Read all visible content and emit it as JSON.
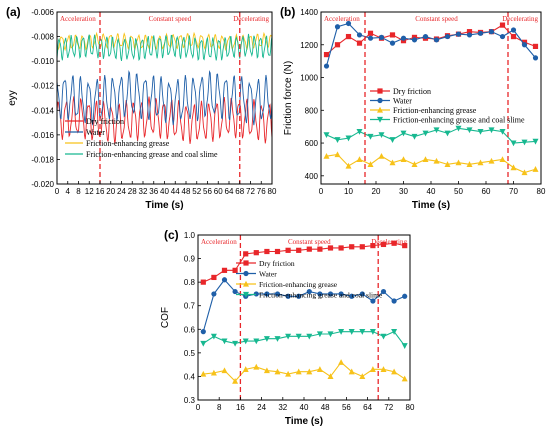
{
  "colors": {
    "dry": "#e8262a",
    "water": "#1f5fa8",
    "grease": "#f7c21a",
    "slime": "#17b890",
    "phase_line": "#e8262a",
    "axis": "#000000"
  },
  "chart_data": [
    {
      "panel": "(a)",
      "type": "line",
      "xlabel": "Time (s)",
      "ylabel": "eyy",
      "xlim": [
        0,
        80
      ],
      "ylim": [
        -0.02,
        -0.006
      ],
      "xticks": [
        "0",
        "4",
        "8",
        "12",
        "16",
        "20",
        "24",
        "28",
        "32",
        "36",
        "40",
        "44",
        "48",
        "52",
        "56",
        "60",
        "64",
        "68",
        "72",
        "76",
        "80"
      ],
      "yticks": [
        "-0.020",
        "-0.018",
        "-0.016",
        "-0.014",
        "-0.012",
        "-0.010",
        "-0.008",
        "-0.006"
      ],
      "phases": [
        {
          "label": "Acceleration",
          "x_start": 0,
          "x_end": 16
        },
        {
          "label": "Constant speed",
          "x_start": 16,
          "x_end": 68
        },
        {
          "label": "Decelerating",
          "x_start": 68,
          "x_end": 80
        }
      ],
      "phase_boundaries": [
        16,
        68
      ],
      "legend_position": "bottom-left",
      "series": [
        {
          "name": "Dry friction",
          "color_key": "dry",
          "center": -0.0148,
          "amplitude": 0.0014,
          "period": 2.8
        },
        {
          "name": "Water",
          "color_key": "water",
          "center": -0.013,
          "amplitude": 0.0016,
          "period": 3.0
        },
        {
          "name": "Friction-enhancing grease",
          "color_key": "grease",
          "center": -0.0084,
          "amplitude": 0.0005,
          "period": 2.6
        },
        {
          "name": "Friction-enhancing grease and coal slime",
          "color_key": "slime",
          "center": -0.0089,
          "amplitude": 0.0008,
          "period": 2.2
        }
      ]
    },
    {
      "panel": "(b)",
      "type": "line",
      "xlabel": "Time (s)",
      "ylabel": "Friction force (N)",
      "xlim": [
        0,
        80
      ],
      "ylim": [
        350,
        1400
      ],
      "xticks": [
        "0",
        "10",
        "20",
        "30",
        "40",
        "50",
        "60",
        "70",
        "80"
      ],
      "yticks": [
        "400",
        "600",
        "800",
        "1000",
        "1200",
        "1400"
      ],
      "phases": [
        {
          "label": "Acceleration",
          "x_start": 0,
          "x_end": 16
        },
        {
          "label": "Constant speed",
          "x_start": 16,
          "x_end": 68
        },
        {
          "label": "Decelerating",
          "x_start": 68,
          "x_end": 80
        }
      ],
      "phase_boundaries": [
        16,
        68
      ],
      "legend_position": "middle",
      "x": [
        2,
        6,
        10,
        14,
        18,
        22,
        26,
        30,
        34,
        38,
        42,
        46,
        50,
        54,
        58,
        62,
        66,
        70,
        74,
        78
      ],
      "series": [
        {
          "name": "Dry friction",
          "color_key": "dry",
          "marker": "square",
          "values": [
            1140,
            1200,
            1250,
            1210,
            1270,
            1240,
            1260,
            1225,
            1245,
            1240,
            1235,
            1255,
            1265,
            1280,
            1275,
            1280,
            1320,
            1250,
            1215,
            1190
          ]
        },
        {
          "name": "Water",
          "color_key": "water",
          "marker": "circle",
          "values": [
            1070,
            1310,
            1330,
            1260,
            1240,
            1245,
            1210,
            1240,
            1230,
            1250,
            1230,
            1250,
            1265,
            1260,
            1270,
            1280,
            1250,
            1290,
            1200,
            1120
          ]
        },
        {
          "name": "Friction-enhancing grease",
          "color_key": "grease",
          "marker": "triangle-up",
          "values": [
            520,
            530,
            460,
            500,
            470,
            520,
            480,
            500,
            470,
            500,
            490,
            470,
            480,
            470,
            480,
            490,
            500,
            450,
            420,
            440
          ]
        },
        {
          "name": "Friction-enhancing grease and coal slime",
          "color_key": "slime",
          "marker": "triangle-down",
          "values": [
            650,
            620,
            630,
            670,
            640,
            650,
            620,
            660,
            640,
            660,
            680,
            660,
            690,
            680,
            670,
            680,
            670,
            600,
            605,
            610
          ]
        }
      ]
    },
    {
      "panel": "(c)",
      "type": "line",
      "xlabel": "Time (s)",
      "ylabel": "COF",
      "xlim": [
        0,
        80
      ],
      "ylim": [
        0.3,
        1.0
      ],
      "xticks": [
        "0",
        "8",
        "16",
        "24",
        "32",
        "40",
        "48",
        "56",
        "64",
        "72",
        "80"
      ],
      "yticks": [
        "0.3",
        "0.4",
        "0.5",
        "0.6",
        "0.7",
        "0.8",
        "0.9",
        "1.0"
      ],
      "phases": [
        {
          "label": "Acceleration",
          "x_start": 0,
          "x_end": 16
        },
        {
          "label": "Constant speed",
          "x_start": 16,
          "x_end": 68
        },
        {
          "label": "Decelerating",
          "x_start": 68,
          "x_end": 80
        }
      ],
      "phase_boundaries": [
        16,
        68
      ],
      "legend_position": "top-right",
      "x": [
        2,
        6,
        10,
        14,
        18,
        22,
        26,
        30,
        34,
        38,
        42,
        46,
        50,
        54,
        58,
        62,
        66,
        70,
        74,
        78
      ],
      "series": [
        {
          "name": "Dry friction",
          "color_key": "dry",
          "marker": "square",
          "values": [
            0.8,
            0.82,
            0.85,
            0.85,
            0.92,
            0.925,
            0.93,
            0.93,
            0.935,
            0.935,
            0.94,
            0.94,
            0.945,
            0.945,
            0.95,
            0.95,
            0.955,
            0.96,
            0.965,
            0.955
          ]
        },
        {
          "name": "Water",
          "color_key": "water",
          "marker": "circle",
          "values": [
            0.59,
            0.75,
            0.81,
            0.76,
            0.74,
            0.75,
            0.75,
            0.75,
            0.74,
            0.74,
            0.76,
            0.75,
            0.75,
            0.75,
            0.74,
            0.75,
            0.72,
            0.76,
            0.72,
            0.74
          ]
        },
        {
          "name": "Friction-enhancing grease",
          "color_key": "grease",
          "marker": "triangle-up",
          "values": [
            0.41,
            0.415,
            0.425,
            0.38,
            0.43,
            0.44,
            0.425,
            0.42,
            0.41,
            0.42,
            0.42,
            0.43,
            0.4,
            0.46,
            0.42,
            0.4,
            0.43,
            0.43,
            0.42,
            0.39
          ]
        },
        {
          "name": "Friction-enhancing grease and coal slime",
          "color_key": "slime",
          "marker": "triangle-down",
          "values": [
            0.54,
            0.57,
            0.55,
            0.54,
            0.55,
            0.55,
            0.56,
            0.56,
            0.57,
            0.57,
            0.57,
            0.58,
            0.58,
            0.59,
            0.59,
            0.59,
            0.59,
            0.57,
            0.59,
            0.53
          ]
        }
      ]
    }
  ]
}
